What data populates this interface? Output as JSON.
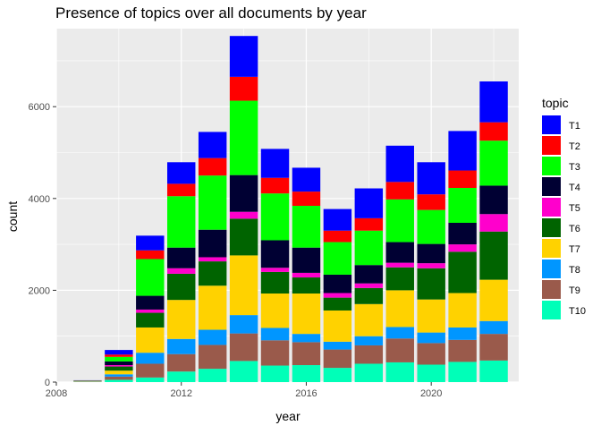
{
  "chart_data": {
    "type": "bar",
    "stacked": true,
    "title": "Presence of topics over all documents by year",
    "xlabel": "year",
    "ylabel": "count",
    "xlim": [
      2008,
      2022.8
    ],
    "ylim": [
      0,
      7700
    ],
    "x_ticks": [
      2008,
      2012,
      2016,
      2020
    ],
    "y_ticks": [
      0,
      2000,
      4000,
      6000
    ],
    "grid": true,
    "legend": {
      "title": "topic",
      "position": "right"
    },
    "x": [
      2009,
      2010,
      2011,
      2012,
      2013,
      2014,
      2015,
      2016,
      2017,
      2018,
      2019,
      2020,
      2021,
      2022
    ],
    "series": [
      {
        "name": "T10",
        "color": "#00ffb8",
        "values": [
          5,
          50,
          100,
          230,
          290,
          460,
          360,
          370,
          310,
          400,
          430,
          380,
          440,
          470
        ]
      },
      {
        "name": "T9",
        "color": "#9a5a4b",
        "values": [
          5,
          70,
          300,
          380,
          520,
          600,
          550,
          500,
          400,
          400,
          520,
          470,
          480,
          580
        ]
      },
      {
        "name": "T8",
        "color": "#0096ff",
        "values": [
          5,
          50,
          240,
          330,
          330,
          400,
          270,
          180,
          170,
          200,
          250,
          230,
          270,
          280
        ]
      },
      {
        "name": "T7",
        "color": "#ffd200",
        "values": [
          5,
          80,
          550,
          850,
          960,
          1300,
          750,
          880,
          680,
          700,
          800,
          720,
          750,
          900
        ]
      },
      {
        "name": "T6",
        "color": "#006400",
        "values": [
          5,
          90,
          320,
          570,
          530,
          800,
          470,
          350,
          280,
          350,
          500,
          680,
          900,
          1050
        ]
      },
      {
        "name": "T5",
        "color": "#ff00cc",
        "values": [
          2,
          30,
          70,
          120,
          90,
          150,
          90,
          100,
          100,
          100,
          100,
          110,
          160,
          380
        ]
      },
      {
        "name": "T4",
        "color": "#000033",
        "values": [
          2,
          80,
          300,
          450,
          600,
          800,
          600,
          550,
          400,
          400,
          450,
          420,
          470,
          620
        ]
      },
      {
        "name": "T3",
        "color": "#00ff00",
        "values": [
          5,
          100,
          800,
          1120,
          1180,
          1620,
          1020,
          910,
          710,
          750,
          930,
          740,
          760,
          980
        ]
      },
      {
        "name": "T2",
        "color": "#ff0000",
        "values": [
          3,
          50,
          190,
          270,
          380,
          520,
          340,
          310,
          250,
          270,
          380,
          340,
          380,
          400
        ]
      },
      {
        "name": "T1",
        "color": "#0000ff",
        "values": [
          3,
          100,
          320,
          470,
          570,
          890,
          630,
          520,
          470,
          650,
          790,
          700,
          860,
          890
        ]
      }
    ]
  }
}
